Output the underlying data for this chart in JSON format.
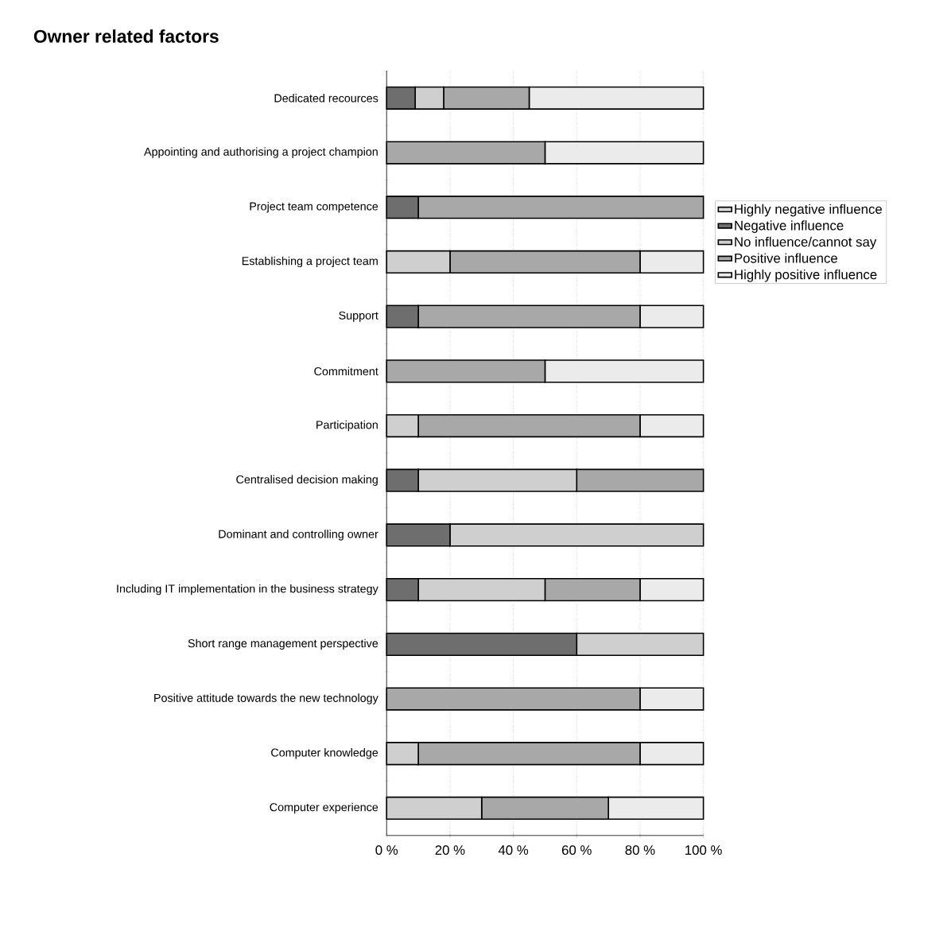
{
  "chart_data": {
    "type": "bar",
    "orientation": "horizontal",
    "stacked": true,
    "title": "Owner related factors",
    "categories": [
      "Dedicated recources",
      "Appointing and authorising a project champion",
      "Project team competence",
      "Establishing a project team",
      "Support",
      "Commitment",
      "Participation",
      "Centralised decision making",
      "Dominant and controlling owner",
      "Including IT implementation in the business strategy",
      "Short range management perspective",
      "Positive attitude towards the new technology",
      "Computer knowledge",
      "Computer experience"
    ],
    "series": [
      {
        "name": "Highly negative influence",
        "color": "#dcdcdc",
        "values": [
          0,
          0,
          0,
          0,
          0,
          0,
          0,
          0,
          0,
          0,
          0,
          0,
          0,
          0
        ]
      },
      {
        "name": "Negative influence",
        "color": "#6e6e6e",
        "values": [
          9,
          0,
          10,
          0,
          10,
          0,
          0,
          10,
          20,
          10,
          60,
          0,
          0,
          0
        ]
      },
      {
        "name": "No influence/cannot say",
        "color": "#cfcfcf",
        "values": [
          9,
          0,
          0,
          20,
          0,
          0,
          10,
          50,
          80,
          40,
          40,
          0,
          10,
          30
        ]
      },
      {
        "name": "Positive influence",
        "color": "#a8a8a8",
        "values": [
          27,
          50,
          90,
          60,
          70,
          50,
          70,
          40,
          0,
          30,
          0,
          80,
          70,
          40
        ]
      },
      {
        "name": "Highly positive  influence",
        "color": "#ebebeb",
        "values": [
          55,
          50,
          0,
          20,
          20,
          50,
          20,
          0,
          0,
          20,
          0,
          20,
          20,
          30
        ]
      }
    ],
    "xlim": [
      0,
      100
    ],
    "xticks": [
      {
        "value": 0,
        "label": "0 %"
      },
      {
        "value": 20,
        "label": "20 %"
      },
      {
        "value": 40,
        "label": "40 %"
      },
      {
        "value": 60,
        "label": "60 %"
      },
      {
        "value": 80,
        "label": "80 %"
      },
      {
        "value": 100,
        "label": "100 %"
      }
    ],
    "grid": "x",
    "legend": "right"
  }
}
